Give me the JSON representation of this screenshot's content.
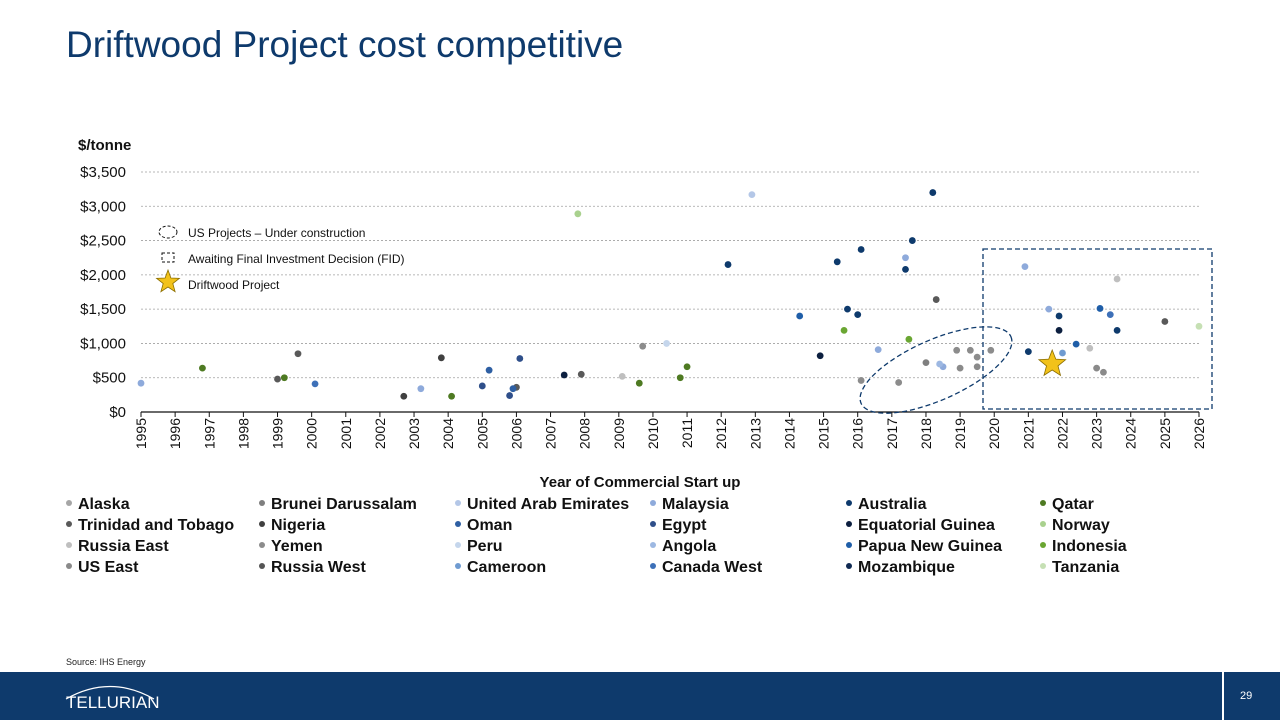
{
  "title": "Driftwood Project cost competitive",
  "source": "Source:   IHS Energy",
  "logo_text": "TELLURIAN",
  "page_number": "29",
  "colors": {
    "brand_navy": "#0e3a6c",
    "driftwood_star": "#f2c21a"
  },
  "chart_data": {
    "type": "scatter",
    "ylabel": "$/tonne",
    "xlabel": "Year of Commercial Start up",
    "ylim": [
      0,
      3500
    ],
    "yticks": [
      0,
      500,
      1000,
      1500,
      2000,
      2500,
      3000,
      3500
    ],
    "ytick_labels": [
      "$0",
      "$500",
      "$1,000",
      "$1,500",
      "$2,000",
      "$2,500",
      "$3,000",
      "$3,500"
    ],
    "xlim": [
      1995,
      2026
    ],
    "xtick_labels": [
      "1995",
      "1996",
      "1997",
      "1998",
      "1999",
      "2000",
      "2001",
      "2002",
      "2003",
      "2004",
      "2005",
      "2006",
      "2007",
      "2008",
      "2009",
      "2010",
      "2011",
      "2012",
      "2013",
      "2014",
      "2015",
      "2016",
      "2017",
      "2018",
      "2019",
      "2020",
      "2021",
      "2022",
      "2023",
      "2024",
      "2025",
      "2026"
    ],
    "grid": true,
    "annotations": {
      "us_projects": "US Projects – Under construction",
      "awaiting_fid": "Awaiting Final Investment Decision (FID)",
      "driftwood": "Driftwood Project"
    },
    "driftwood_point": {
      "x": 2021.7,
      "y": 700
    },
    "series": [
      {
        "name": "Alaska",
        "color": "#a6a6a6",
        "points": []
      },
      {
        "name": "Brunei Darussalam",
        "color": "#7f7f7f",
        "points": [
          [
            2018.0,
            720
          ]
        ]
      },
      {
        "name": "United Arab Emirates",
        "color": "#b4c7e7",
        "points": [
          [
            2012.9,
            3170
          ]
        ]
      },
      {
        "name": "Malaysia",
        "color": "#8eaadb",
        "points": [
          [
            1995.0,
            420
          ],
          [
            2003.2,
            340
          ],
          [
            2016.6,
            910
          ],
          [
            2017.4,
            2250
          ],
          [
            2018.5,
            660
          ],
          [
            2020.9,
            2120
          ],
          [
            2021.6,
            1500
          ]
        ]
      },
      {
        "name": "Australia",
        "color": "#0e3a6c",
        "points": [
          [
            2012.2,
            2150
          ],
          [
            2015.4,
            2190
          ],
          [
            2015.7,
            1500
          ],
          [
            2016.0,
            1420
          ],
          [
            2016.1,
            2370
          ],
          [
            2017.4,
            2080
          ],
          [
            2017.6,
            2500
          ],
          [
            2018.2,
            3200
          ],
          [
            2021.0,
            880
          ],
          [
            2021.9,
            1400
          ],
          [
            2023.6,
            1190
          ]
        ]
      },
      {
        "name": "Qatar",
        "color": "#4e7a22",
        "points": [
          [
            1996.8,
            640
          ],
          [
            1999.2,
            500
          ],
          [
            2004.1,
            230
          ],
          [
            2009.6,
            420
          ],
          [
            2010.8,
            500
          ],
          [
            2011.0,
            660
          ]
        ]
      },
      {
        "name": "Trinidad and Tobago",
        "color": "#595959",
        "points": [
          [
            1999.0,
            480
          ],
          [
            1999.6,
            850
          ],
          [
            2006.0,
            360
          ],
          [
            2007.9,
            550
          ],
          [
            2018.3,
            1640
          ],
          [
            2025.0,
            1320
          ]
        ]
      },
      {
        "name": "Nigeria",
        "color": "#404040",
        "points": [
          [
            2002.7,
            230
          ],
          [
            2003.8,
            790
          ]
        ]
      },
      {
        "name": "Oman",
        "color": "#2e5fa3",
        "points": [
          [
            2005.2,
            610
          ],
          [
            2005.9,
            340
          ]
        ]
      },
      {
        "name": "Egypt",
        "color": "#2f4f8a",
        "points": [
          [
            2005.0,
            380
          ],
          [
            2005.8,
            240
          ],
          [
            2006.1,
            780
          ]
        ]
      },
      {
        "name": "Equatorial Guinea",
        "color": "#0c1f3f",
        "points": [
          [
            2007.4,
            540
          ],
          [
            2014.9,
            820
          ],
          [
            2021.9,
            1190
          ]
        ]
      },
      {
        "name": "Norway",
        "color": "#a9d18e",
        "points": [
          [
            2007.8,
            2890
          ]
        ]
      },
      {
        "name": "Russia East",
        "color": "#bfbfbf",
        "points": [
          [
            2009.1,
            520
          ],
          [
            2022.8,
            930
          ],
          [
            2023.6,
            1940
          ]
        ]
      },
      {
        "name": "Yemen",
        "color": "#8c8c8c",
        "points": [
          [
            2009.7,
            960
          ],
          [
            2016.1,
            460
          ],
          [
            2017.2,
            430
          ],
          [
            2018.9,
            900
          ],
          [
            2019.3,
            900
          ],
          [
            2019.5,
            800
          ],
          [
            2019.9,
            900
          ]
        ]
      },
      {
        "name": "Peru",
        "color": "#c5d6ec",
        "points": [
          [
            2010.4,
            1000
          ]
        ]
      },
      {
        "name": "Angola",
        "color": "#9db8e2",
        "points": [
          [
            2018.4,
            700
          ]
        ]
      },
      {
        "name": "Papua New Guinea",
        "color": "#1f5ea8",
        "points": [
          [
            2014.3,
            1400
          ],
          [
            2022.4,
            990
          ],
          [
            2023.1,
            1510
          ]
        ]
      },
      {
        "name": "Indonesia",
        "color": "#6aa632",
        "points": [
          [
            2015.6,
            1190
          ],
          [
            2017.5,
            1060
          ]
        ]
      },
      {
        "name": "US East",
        "color": "#8a8a8a",
        "points": [
          [
            2019.0,
            640
          ],
          [
            2019.5,
            660
          ],
          [
            2023.0,
            640
          ],
          [
            2023.2,
            580
          ]
        ]
      },
      {
        "name": "Russia West",
        "color": "#555555",
        "points": []
      },
      {
        "name": "Cameroon",
        "color": "#6f9bd1",
        "points": [
          [
            2022.0,
            860
          ]
        ]
      },
      {
        "name": "Canada West",
        "color": "#3d70b8",
        "points": [
          [
            2023.4,
            1420
          ],
          [
            2000.1,
            410
          ]
        ]
      },
      {
        "name": "Mozambique",
        "color": "#102a52",
        "points": []
      },
      {
        "name": "Tanzania",
        "color": "#c6e0b4",
        "points": [
          [
            2026.0,
            1250
          ]
        ]
      }
    ],
    "legend": {
      "placement": "bottom",
      "rows": [
        [
          {
            "name": "Alaska",
            "color": "#a6a6a6"
          },
          {
            "name": "Brunei Darussalam",
            "color": "#7f7f7f"
          },
          {
            "name": "United Arab Emirates",
            "color": "#b4c7e7"
          },
          {
            "name": "Malaysia",
            "color": "#8eaadb"
          },
          {
            "name": "Australia",
            "color": "#0e3a6c"
          },
          {
            "name": "Qatar",
            "color": "#4e7a22"
          }
        ],
        [
          {
            "name": "Trinidad and Tobago",
            "color": "#595959"
          },
          {
            "name": "Nigeria",
            "color": "#404040"
          },
          {
            "name": "Oman",
            "color": "#2e5fa3"
          },
          {
            "name": "Egypt",
            "color": "#2f4f8a"
          },
          {
            "name": "Equatorial Guinea",
            "color": "#0c1f3f"
          },
          {
            "name": "Norway",
            "color": "#a9d18e"
          }
        ],
        [
          {
            "name": "Russia East",
            "color": "#bfbfbf"
          },
          {
            "name": "Yemen",
            "color": "#8c8c8c"
          },
          {
            "name": "Peru",
            "color": "#c5d6ec"
          },
          {
            "name": "Angola",
            "color": "#9db8e2"
          },
          {
            "name": "Papua New Guinea",
            "color": "#1f5ea8"
          },
          {
            "name": "Indonesia",
            "color": "#6aa632"
          }
        ],
        [
          {
            "name": "US East",
            "color": "#8a8a8a"
          },
          {
            "name": "Russia West",
            "color": "#555555"
          },
          {
            "name": "Cameroon",
            "color": "#6f9bd1"
          },
          {
            "name": "Canada West",
            "color": "#3d70b8"
          },
          {
            "name": "Mozambique",
            "color": "#102a52"
          },
          {
            "name": "Tanzania",
            "color": "#c6e0b4"
          }
        ]
      ]
    }
  }
}
